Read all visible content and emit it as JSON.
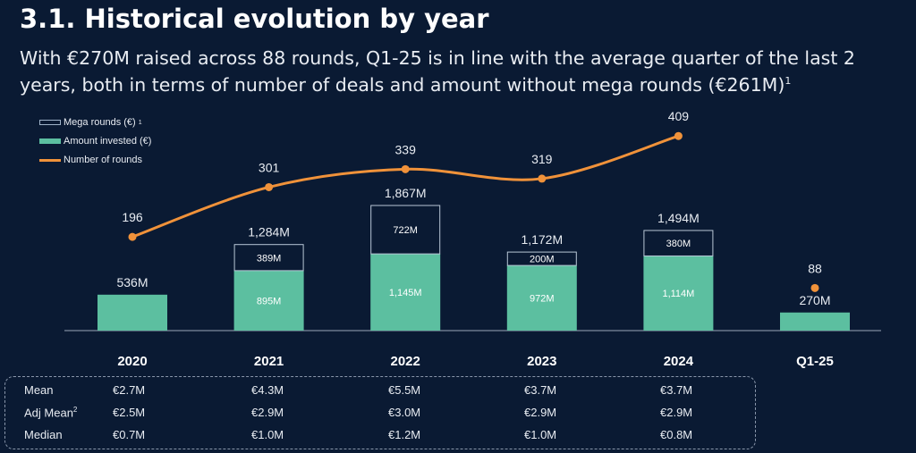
{
  "title": "3.1. Historical evolution by year",
  "subtitle": "With €270M raised across 88 rounds, Q1-25 is in line with the average quarter of the last 2 years, both in terms of number of deals and amount without mega rounds (€261M)",
  "subtitle_footnote": "1",
  "colors": {
    "background": "#0a1a33",
    "amount": "#5cbfa0",
    "mega": "#0a1a33",
    "rounds": "#f0923a"
  },
  "chart_data": {
    "type": "bar",
    "categories": [
      "2020",
      "2021",
      "2022",
      "2023",
      "2024",
      "Q1-25"
    ],
    "legend": [
      {
        "label": "Mega rounds (€)",
        "footnote": "1"
      },
      {
        "label": "Amount invested (€)"
      },
      {
        "label": "Number of rounds"
      }
    ],
    "series": [
      {
        "name": "Amount invested (€)",
        "unit": "M€",
        "values": [
          536,
          895,
          1145,
          972,
          1114,
          270
        ],
        "labels": [
          "",
          "895M",
          "1,145M",
          "972M",
          "1,114M",
          ""
        ]
      },
      {
        "name": "Mega rounds (€)",
        "unit": "M€",
        "values": [
          0,
          389,
          722,
          200,
          380,
          0
        ],
        "labels": [
          "",
          "389M",
          "722M",
          "200M",
          "380M",
          ""
        ]
      },
      {
        "name": "Number of rounds",
        "type": "line",
        "values": [
          196,
          301,
          339,
          319,
          409,
          88
        ],
        "labels": [
          "196",
          "301",
          "339",
          "319",
          "409",
          "88"
        ]
      }
    ],
    "totals": [
      "536M",
      "1,284M",
      "1,867M",
      "1,172M",
      "1,494M",
      "270M"
    ],
    "legend_position": "top-left",
    "grid": false
  },
  "stats": {
    "rows": [
      {
        "label": "Mean",
        "footnote": "",
        "values": [
          "€2.7M",
          "€4.3M",
          "€5.5M",
          "€3.7M",
          "€3.7M"
        ]
      },
      {
        "label": "Adj Mean",
        "footnote": "2",
        "values": [
          "€2.5M",
          "€2.9M",
          "€3.0M",
          "€2.9M",
          "€2.9M"
        ]
      },
      {
        "label": "Median",
        "footnote": "",
        "values": [
          "€0.7M",
          "€1.0M",
          "€1.2M",
          "€1.0M",
          "€0.8M"
        ]
      }
    ]
  }
}
